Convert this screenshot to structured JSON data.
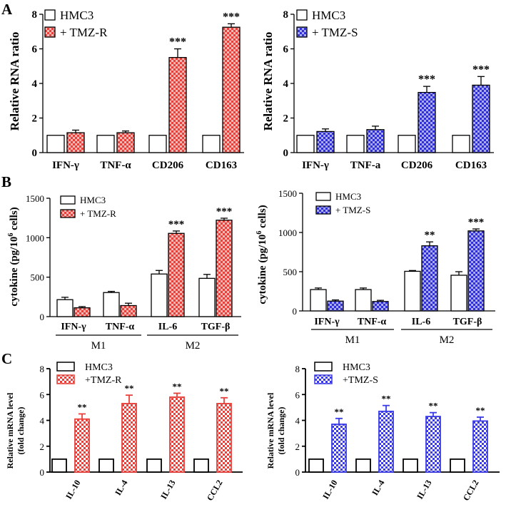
{
  "panel_labels": [
    "A",
    "B",
    "C"
  ],
  "colors": {
    "red": "#e8403a",
    "blue": "#3a3ae6",
    "black": "#000000",
    "white": "#ffffff"
  },
  "chart_data": [
    {
      "id": "A-left",
      "type": "bar",
      "ylabel": "Relative RNA ratio",
      "categories": [
        "IFN-γ",
        "TNF-α",
        "CD206",
        "CD163"
      ],
      "ylim": [
        0,
        8
      ],
      "yticks": [
        0,
        2,
        4,
        6,
        8
      ],
      "series": [
        {
          "name": "HMC3",
          "values": [
            1,
            1,
            1,
            1
          ],
          "errors": [
            0,
            0,
            0,
            0
          ],
          "fill": "white"
        },
        {
          "name": "+ TMZ-R",
          "values": [
            1.15,
            1.15,
            5.5,
            7.25
          ],
          "errors": [
            0.15,
            0.1,
            0.5,
            0.2
          ],
          "fill": "check",
          "color": "red"
        }
      ],
      "annotations": [
        "",
        "",
        "***",
        "***"
      ]
    },
    {
      "id": "A-right",
      "type": "bar",
      "ylabel": "Relative RNA ratio",
      "categories": [
        "IFN-γ",
        "TNF-a",
        "CD206",
        "CD163"
      ],
      "ylim": [
        0,
        8
      ],
      "yticks": [
        0,
        2,
        4,
        6,
        8
      ],
      "series": [
        {
          "name": "HMC3",
          "values": [
            1,
            1,
            1,
            1
          ],
          "errors": [
            0,
            0,
            0,
            0
          ],
          "fill": "white"
        },
        {
          "name": "+ TMZ-S",
          "values": [
            1.22,
            1.33,
            3.48,
            3.9
          ],
          "errors": [
            0.15,
            0.2,
            0.35,
            0.5
          ],
          "fill": "check",
          "color": "blue"
        }
      ],
      "annotations": [
        "",
        "",
        "***",
        "***"
      ]
    },
    {
      "id": "B-left",
      "type": "bar",
      "ylabel_main": "cytokine (pg/10",
      "ylabel_sup": "6",
      "ylabel_tail": " cells)",
      "categories": [
        "IFN-γ",
        "TNF-α",
        "IL-6",
        "TGF-β"
      ],
      "groups": [
        "M1",
        "M2"
      ],
      "ylim": [
        0,
        1500
      ],
      "yticks": [
        0,
        500,
        1000,
        1500
      ],
      "series": [
        {
          "name": "HMC3",
          "values": [
            215,
            305,
            540,
            485
          ],
          "errors": [
            30,
            15,
            45,
            50
          ],
          "fill": "white"
        },
        {
          "name": "+ TMZ-R",
          "values": [
            112,
            140,
            1055,
            1222
          ],
          "errors": [
            15,
            30,
            30,
            25
          ],
          "fill": "check",
          "color": "red"
        }
      ],
      "annotations": [
        "",
        "",
        "***",
        "***"
      ]
    },
    {
      "id": "B-right",
      "type": "bar",
      "ylabel_main": "cytokine (pg/10",
      "ylabel_sup": "6",
      "ylabel_tail": " cells)",
      "categories": [
        "IFN-γ",
        "TNF-α",
        "IL-6",
        "TGF-β"
      ],
      "groups": [
        "M1",
        "M2"
      ],
      "ylim": [
        0,
        1500
      ],
      "yticks": [
        0,
        500,
        1000,
        1500
      ],
      "series": [
        {
          "name": "HMC3",
          "values": [
            272,
            272,
            505,
            455
          ],
          "errors": [
            20,
            20,
            10,
            45
          ],
          "fill": "white"
        },
        {
          "name": "+ TMZ-S",
          "values": [
            125,
            120,
            830,
            1020
          ],
          "errors": [
            15,
            15,
            50,
            25
          ],
          "fill": "check",
          "color": "blue"
        }
      ],
      "annotations": [
        "",
        "",
        "**",
        "***"
      ]
    },
    {
      "id": "C-left",
      "type": "bar",
      "ylabel_line1": "Relative mRNA level",
      "ylabel_line2": "(fold change)",
      "categories": [
        "IL-10",
        "IL-4",
        "IL-13",
        "CCL2"
      ],
      "ylim": [
        0,
        8
      ],
      "yticks": [
        0,
        2,
        4,
        6,
        8
      ],
      "series": [
        {
          "name": "HMC3",
          "values": [
            1,
            1,
            1,
            1
          ],
          "errors": [
            0,
            0,
            0,
            0
          ],
          "fill": "white"
        },
        {
          "name": "+TMZ-R",
          "values": [
            4.1,
            5.3,
            5.8,
            5.3
          ],
          "errors": [
            0.4,
            0.65,
            0.3,
            0.45
          ],
          "fill": "hatch",
          "color": "red"
        }
      ],
      "annotations": [
        "**",
        "**",
        "**",
        "**"
      ]
    },
    {
      "id": "C-right",
      "type": "bar",
      "ylabel_line1": "Relative mRNA level",
      "ylabel_line2": "(fold change)",
      "categories": [
        "IL-10",
        "IL-4",
        "IL-13",
        "CCL2"
      ],
      "ylim": [
        0,
        8
      ],
      "yticks": [
        0,
        2,
        4,
        6,
        8
      ],
      "series": [
        {
          "name": "HMC3",
          "values": [
            1,
            1,
            1,
            1
          ],
          "errors": [
            0,
            0,
            0,
            0
          ],
          "fill": "white"
        },
        {
          "name": "+TMZ-S",
          "values": [
            3.7,
            4.7,
            4.3,
            3.95
          ],
          "errors": [
            0.45,
            0.45,
            0.3,
            0.3
          ],
          "fill": "hatch",
          "color": "blue"
        }
      ],
      "annotations": [
        "**",
        "**",
        "**",
        "**"
      ]
    }
  ]
}
